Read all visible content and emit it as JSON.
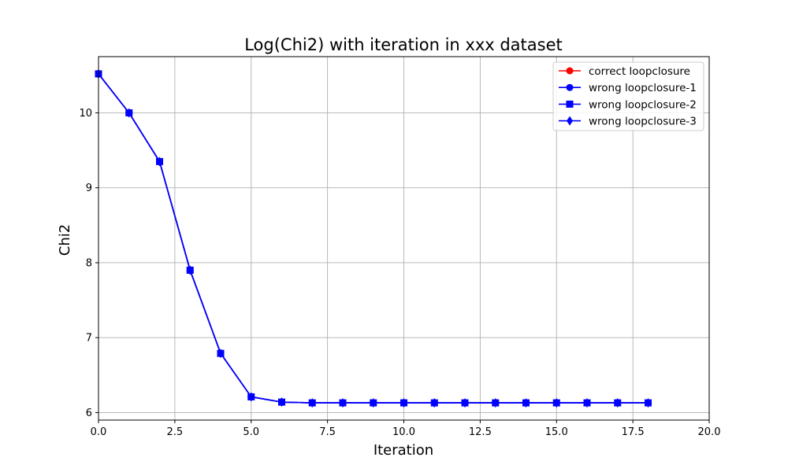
{
  "chart_data": {
    "type": "line",
    "title": "Log(Chi2) with iteration in xxx dataset",
    "xlabel": "Iteration",
    "ylabel": "Chi2",
    "xlim": [
      0,
      20
    ],
    "ylim": [
      5.9,
      10.75
    ],
    "xticks": [
      "0.0",
      "2.5",
      "5.0",
      "7.5",
      "10.0",
      "12.5",
      "15.0",
      "17.5",
      "20.0"
    ],
    "yticks": [
      "6",
      "7",
      "8",
      "9",
      "10"
    ],
    "grid": true,
    "legend_position": "top-right",
    "x": [
      0,
      1,
      2,
      3,
      4,
      5,
      6,
      7,
      8,
      9,
      10,
      11,
      12,
      13,
      14,
      15,
      16,
      17,
      18
    ],
    "series": [
      {
        "name": "correct loopclosure",
        "color": "#ff0000",
        "marker": "circle",
        "values": [
          10.52,
          10.0,
          9.35,
          7.9,
          6.79,
          6.21,
          6.14,
          6.13,
          6.13,
          6.13,
          6.13,
          6.13,
          6.13,
          6.13,
          6.13,
          6.13,
          6.13,
          6.13,
          6.13
        ]
      },
      {
        "name": "wrong loopclosure-1",
        "color": "#0000ff",
        "marker": "circle",
        "values": [
          10.52,
          10.0,
          9.35,
          7.9,
          6.79,
          6.21,
          6.14,
          6.13,
          6.13,
          6.13,
          6.13,
          6.13,
          6.13,
          6.13,
          6.13,
          6.13,
          6.13,
          6.13,
          6.13
        ]
      },
      {
        "name": "wrong loopclosure-2",
        "color": "#0000ff",
        "marker": "square",
        "values": [
          10.52,
          10.0,
          9.35,
          7.9,
          6.79,
          6.21,
          6.14,
          6.13,
          6.13,
          6.13,
          6.13,
          6.13,
          6.13,
          6.13,
          6.13,
          6.13,
          6.13,
          6.13,
          6.13
        ]
      },
      {
        "name": "wrong loopclosure-3",
        "color": "#0000ff",
        "marker": "diamond",
        "values": [
          10.52,
          10.0,
          9.35,
          7.9,
          6.79,
          6.21,
          6.14,
          6.13,
          6.13,
          6.13,
          6.13,
          6.13,
          6.13,
          6.13,
          6.13,
          6.13,
          6.13,
          6.13,
          6.13
        ]
      }
    ]
  }
}
